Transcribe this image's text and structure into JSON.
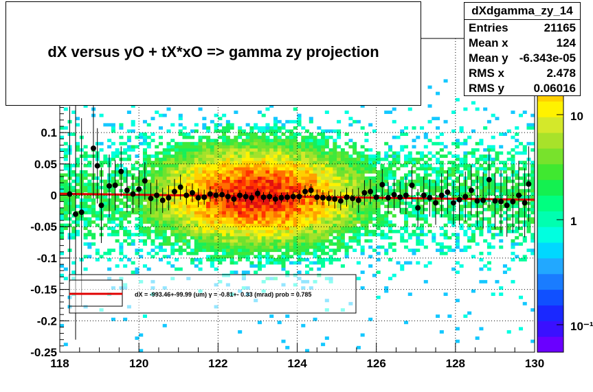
{
  "title": "dX  versus  yO + tX*xO =>  gamma zy projection",
  "stats": {
    "name": "dXdgamma_zy_14",
    "rows": [
      {
        "key": "Entries",
        "value": "21165"
      },
      {
        "key": "Mean x",
        "value": "124"
      },
      {
        "key": "Mean y",
        "value": "-6.343e-05"
      },
      {
        "key": "RMS x",
        "value": "2.478"
      },
      {
        "key": "RMS y",
        "value": "0.06016"
      }
    ]
  },
  "legend": {
    "text": "dX = -993.46+-99.99 (um) γ =   -0.81+- 0.33 (mrad) prob = 0.785",
    "line_color": "#e00000"
  },
  "colors": {
    "fit": "#e00000",
    "profile": "#000000"
  },
  "chart_data": {
    "type": "heatmap",
    "title": "dX  versus  yO + tX*xO =>  gamma zy projection",
    "xlim": [
      118,
      130
    ],
    "ylim": [
      -0.25,
      0.25
    ],
    "x_ticks": [
      "118",
      "120",
      "122",
      "124",
      "126",
      "128",
      "130"
    ],
    "y_ticks": [
      "-0.25",
      "-0.2",
      "-0.15",
      "-0.1",
      "-0.05",
      "0",
      "0.05",
      "0.1"
    ],
    "z_scale": "log",
    "z_ticks": [
      "10",
      "1",
      "10⁻¹"
    ],
    "grid": true,
    "heatmap_peak": {
      "x": 123.0,
      "y": 0.0
    },
    "profile_points": [
      {
        "x": 118.25,
        "y": 0.002,
        "err": 0.14
      },
      {
        "x": 118.4,
        "y": -0.03,
        "err": 0.2
      },
      {
        "x": 118.55,
        "y": -0.027,
        "err": 0.15
      },
      {
        "x": 118.85,
        "y": 0.075,
        "err": 0.08
      },
      {
        "x": 118.95,
        "y": 0.047,
        "err": 0.06
      },
      {
        "x": 119.05,
        "y": -0.016,
        "err": 0.06
      },
      {
        "x": 119.25,
        "y": 0.015,
        "err": 0.05
      },
      {
        "x": 119.4,
        "y": 0.016,
        "err": 0.04
      },
      {
        "x": 119.55,
        "y": 0.038,
        "err": 0.04
      },
      {
        "x": 119.7,
        "y": 0.008,
        "err": 0.035
      },
      {
        "x": 119.85,
        "y": 0.002,
        "err": 0.03
      },
      {
        "x": 120.0,
        "y": 0.01,
        "err": 0.03
      },
      {
        "x": 120.15,
        "y": 0.023,
        "err": 0.03
      },
      {
        "x": 120.3,
        "y": -0.005,
        "err": 0.025
      },
      {
        "x": 120.45,
        "y": 0.0,
        "err": 0.025
      },
      {
        "x": 120.6,
        "y": -0.008,
        "err": 0.02
      },
      {
        "x": 120.75,
        "y": -0.004,
        "err": 0.02
      },
      {
        "x": 120.9,
        "y": 0.006,
        "err": 0.02
      },
      {
        "x": 121.05,
        "y": 0.013,
        "err": 0.02
      },
      {
        "x": 121.2,
        "y": 0.0,
        "err": 0.015
      },
      {
        "x": 121.35,
        "y": 0.004,
        "err": 0.015
      },
      {
        "x": 121.5,
        "y": -0.004,
        "err": 0.015
      },
      {
        "x": 121.65,
        "y": -0.003,
        "err": 0.012
      },
      {
        "x": 121.8,
        "y": 0.002,
        "err": 0.012
      },
      {
        "x": 121.95,
        "y": 0.0,
        "err": 0.01
      },
      {
        "x": 122.1,
        "y": 0.001,
        "err": 0.01
      },
      {
        "x": 122.25,
        "y": -0.002,
        "err": 0.01
      },
      {
        "x": 122.4,
        "y": -0.006,
        "err": 0.01
      },
      {
        "x": 122.55,
        "y": 0.0,
        "err": 0.008
      },
      {
        "x": 122.7,
        "y": -0.002,
        "err": 0.008
      },
      {
        "x": 122.85,
        "y": -0.004,
        "err": 0.008
      },
      {
        "x": 123.0,
        "y": 0.003,
        "err": 0.008
      },
      {
        "x": 123.15,
        "y": -0.003,
        "err": 0.008
      },
      {
        "x": 123.3,
        "y": -0.002,
        "err": 0.008
      },
      {
        "x": 123.45,
        "y": -0.006,
        "err": 0.008
      },
      {
        "x": 123.6,
        "y": -0.004,
        "err": 0.008
      },
      {
        "x": 123.75,
        "y": -0.003,
        "err": 0.008
      },
      {
        "x": 123.9,
        "y": -0.002,
        "err": 0.008
      },
      {
        "x": 124.05,
        "y": -0.002,
        "err": 0.01
      },
      {
        "x": 124.2,
        "y": 0.006,
        "err": 0.01
      },
      {
        "x": 124.35,
        "y": 0.008,
        "err": 0.01
      },
      {
        "x": 124.5,
        "y": -0.003,
        "err": 0.012
      },
      {
        "x": 124.65,
        "y": -0.004,
        "err": 0.012
      },
      {
        "x": 124.8,
        "y": -0.005,
        "err": 0.012
      },
      {
        "x": 124.95,
        "y": -0.006,
        "err": 0.015
      },
      {
        "x": 125.1,
        "y": -0.009,
        "err": 0.015
      },
      {
        "x": 125.25,
        "y": -0.003,
        "err": 0.015
      },
      {
        "x": 125.4,
        "y": -0.005,
        "err": 0.015
      },
      {
        "x": 125.55,
        "y": -0.008,
        "err": 0.02
      },
      {
        "x": 125.7,
        "y": 0.004,
        "err": 0.02
      },
      {
        "x": 125.85,
        "y": 0.006,
        "err": 0.02
      },
      {
        "x": 126.0,
        "y": -0.003,
        "err": 0.02
      },
      {
        "x": 126.15,
        "y": 0.017,
        "err": 0.025
      },
      {
        "x": 126.3,
        "y": -0.004,
        "err": 0.025
      },
      {
        "x": 126.45,
        "y": 0.001,
        "err": 0.025
      },
      {
        "x": 126.6,
        "y": -0.003,
        "err": 0.025
      },
      {
        "x": 126.75,
        "y": 0.0,
        "err": 0.03
      },
      {
        "x": 126.9,
        "y": 0.016,
        "err": 0.03
      },
      {
        "x": 127.05,
        "y": -0.02,
        "err": 0.03
      },
      {
        "x": 127.2,
        "y": 0.0,
        "err": 0.03
      },
      {
        "x": 127.35,
        "y": -0.004,
        "err": 0.03
      },
      {
        "x": 127.5,
        "y": -0.012,
        "err": 0.035
      },
      {
        "x": 127.65,
        "y": 0.0,
        "err": 0.035
      },
      {
        "x": 127.8,
        "y": 0.005,
        "err": 0.035
      },
      {
        "x": 127.95,
        "y": -0.012,
        "err": 0.035
      },
      {
        "x": 128.1,
        "y": -0.007,
        "err": 0.04
      },
      {
        "x": 128.25,
        "y": -0.002,
        "err": 0.04
      },
      {
        "x": 128.4,
        "y": 0.008,
        "err": 0.04
      },
      {
        "x": 128.55,
        "y": -0.009,
        "err": 0.04
      },
      {
        "x": 128.7,
        "y": -0.008,
        "err": 0.045
      },
      {
        "x": 128.85,
        "y": 0.025,
        "err": 0.045
      },
      {
        "x": 129.0,
        "y": -0.009,
        "err": 0.045
      },
      {
        "x": 129.15,
        "y": -0.01,
        "err": 0.05
      },
      {
        "x": 129.3,
        "y": -0.016,
        "err": 0.05
      },
      {
        "x": 129.45,
        "y": -0.01,
        "err": 0.05
      },
      {
        "x": 129.6,
        "y": 0.0,
        "err": 0.055
      },
      {
        "x": 129.75,
        "y": -0.012,
        "err": 0.055
      },
      {
        "x": 129.85,
        "y": 0.018,
        "err": 0.06
      }
    ],
    "fit_line": {
      "x": [
        118,
        130
      ],
      "y": [
        0.0025,
        -0.007
      ]
    }
  }
}
